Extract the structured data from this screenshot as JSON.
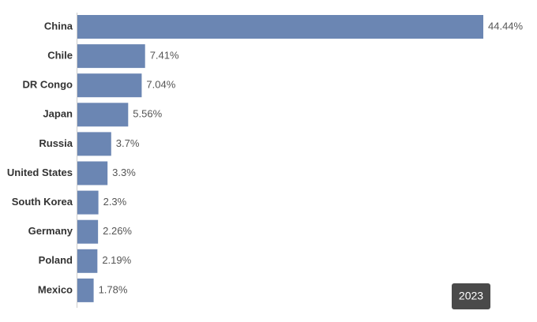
{
  "chart_data": {
    "type": "bar",
    "orientation": "horizontal",
    "color": "#6b86b3",
    "categories": [
      "China",
      "Chile",
      "DR Congo",
      "Japan",
      "Russia",
      "United States",
      "South Korea",
      "Germany",
      "Poland",
      "Mexico"
    ],
    "values": [
      44.44,
      7.41,
      7.04,
      5.56,
      3.7,
      3.3,
      2.3,
      2.26,
      2.19,
      1.78
    ],
    "value_labels": [
      "44.44%",
      "7.41%",
      "7.04%",
      "5.56%",
      "3.7%",
      "3.3%",
      "2.3%",
      "2.26%",
      "2.19%",
      "1.78%"
    ],
    "badge": "2023"
  }
}
